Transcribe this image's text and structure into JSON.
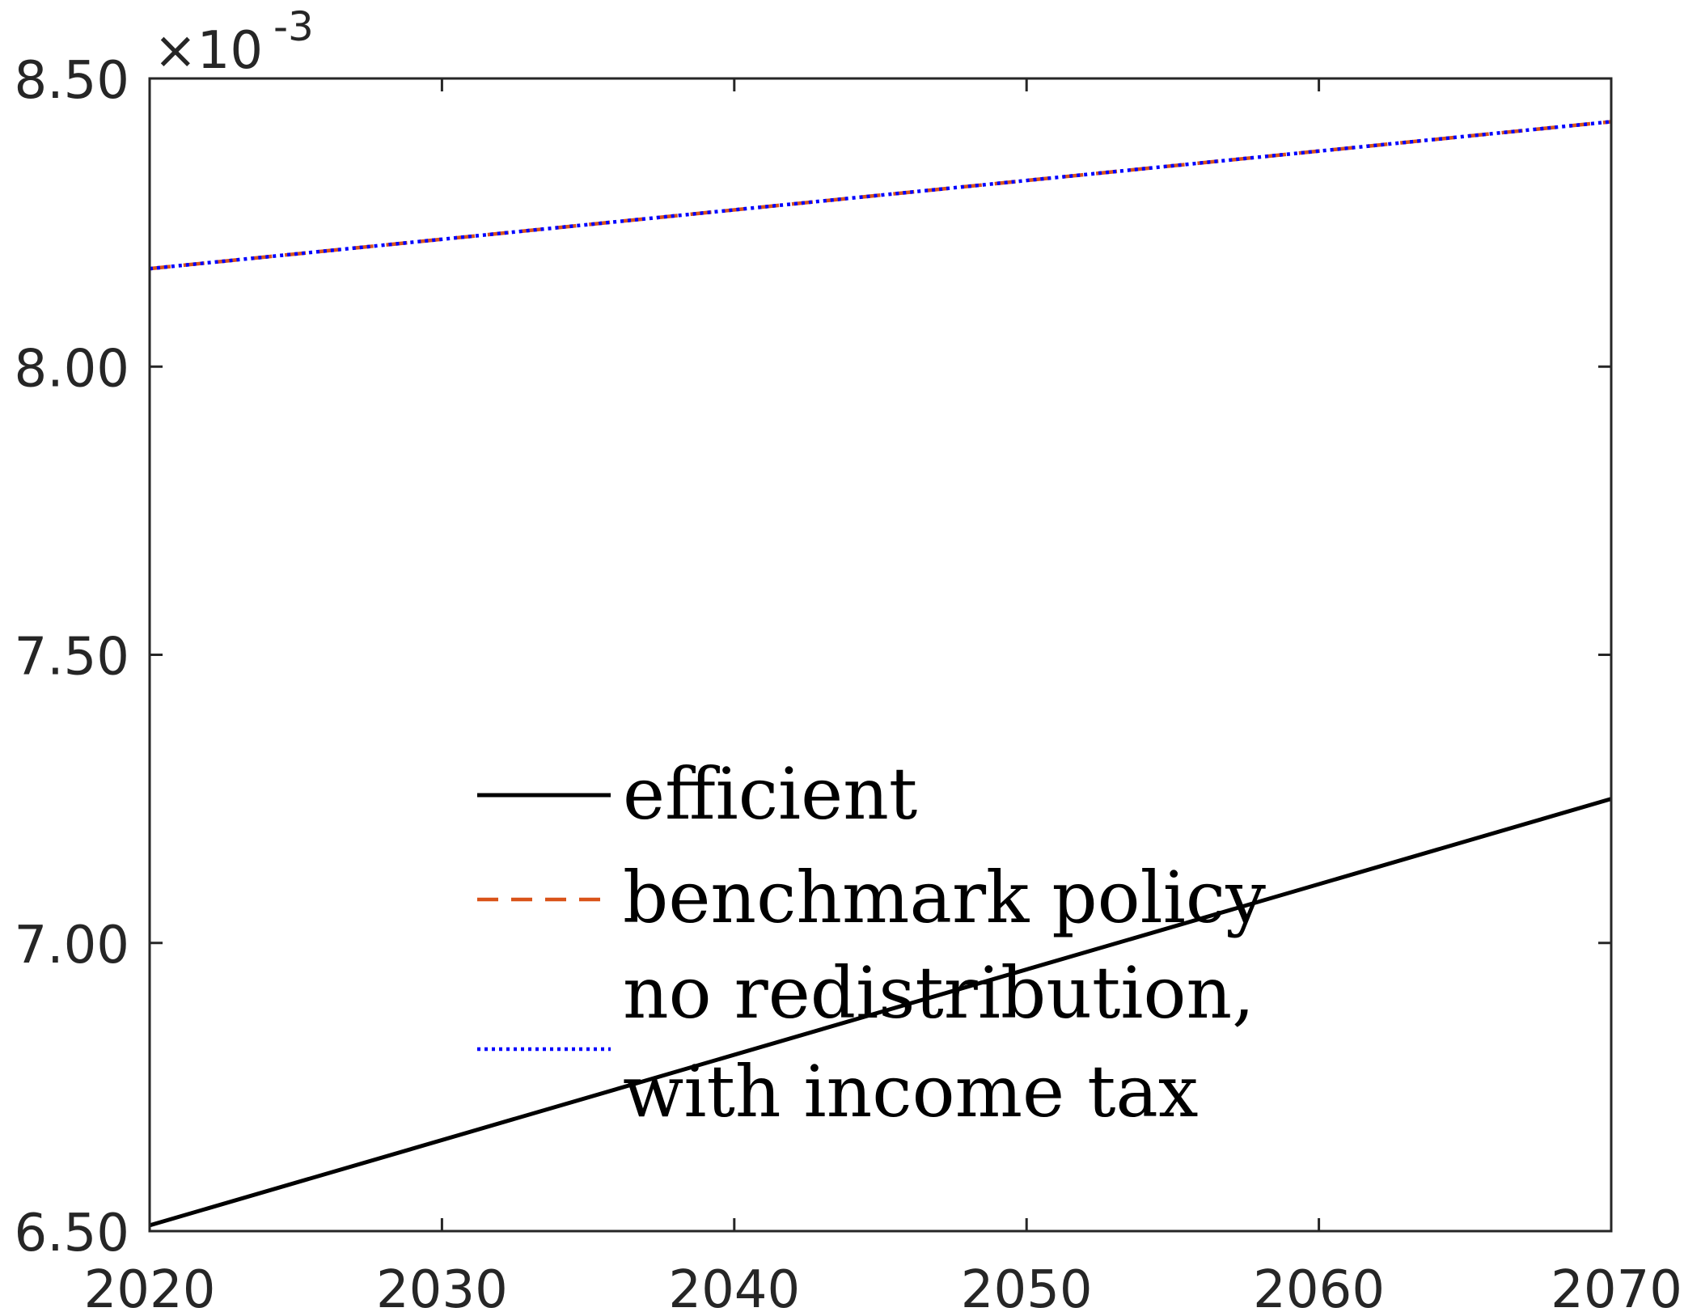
{
  "chart_data": {
    "type": "line",
    "title": "",
    "xlabel": "",
    "ylabel": "",
    "exponent_label": {
      "base": "×10",
      "power": "-3"
    },
    "xlim": [
      2020,
      2070
    ],
    "ylim": [
      6.5,
      8.5
    ],
    "y_multiplier": 0.001,
    "x_ticks": [
      {
        "value": 2020,
        "label": "2020"
      },
      {
        "value": 2030,
        "label": "2030"
      },
      {
        "value": 2040,
        "label": "2040"
      },
      {
        "value": 2050,
        "label": "2050"
      },
      {
        "value": 2060,
        "label": "2060"
      },
      {
        "value": 2070,
        "label": "2070"
      }
    ],
    "y_ticks": [
      {
        "value": 6.5,
        "label": "6.50"
      },
      {
        "value": 7.0,
        "label": "7.00"
      },
      {
        "value": 7.5,
        "label": "7.50"
      },
      {
        "value": 8.0,
        "label": "8.00"
      },
      {
        "value": 8.5,
        "label": "8.50"
      }
    ],
    "grid": false,
    "legend_position": "lower-center",
    "series": [
      {
        "name": "efficient",
        "legend_lines": [
          "efficient"
        ],
        "color": "#000000",
        "style": "solid",
        "x": [
          2020,
          2070
        ],
        "y": [
          6.51,
          7.25
        ]
      },
      {
        "name": "benchmark policy",
        "legend_lines": [
          "benchmark policy"
        ],
        "color": "#D95319",
        "style": "dashed",
        "x": [
          2020,
          2070
        ],
        "y": [
          8.17,
          8.425
        ]
      },
      {
        "name": "no redistribution, with income tax",
        "legend_lines": [
          "no redistribution,",
          "with income tax"
        ],
        "color": "#0000FF",
        "style": "dotted",
        "x": [
          2020,
          2070
        ],
        "y": [
          8.17,
          8.425
        ]
      }
    ]
  }
}
